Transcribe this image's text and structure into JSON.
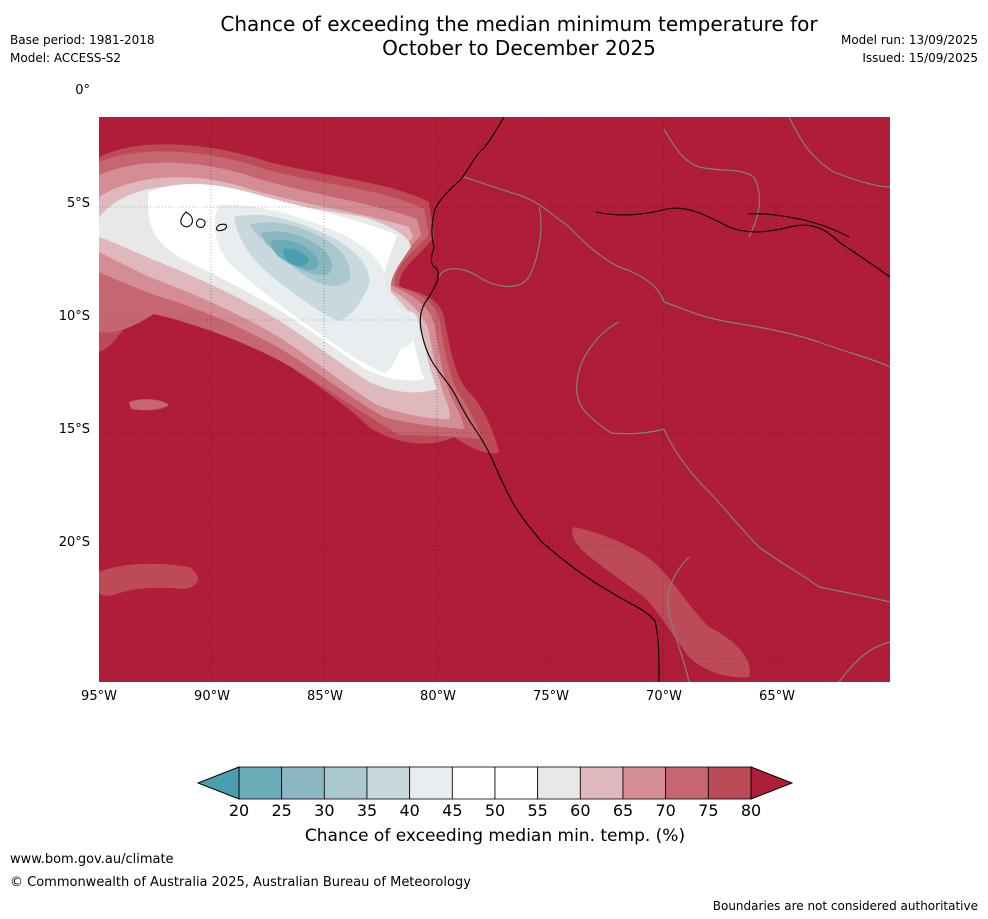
{
  "header": {
    "base_period": "Base period: 1981-2018",
    "model": "Model: ACCESS-S2",
    "model_run": "Model run: 13/09/2025",
    "issued": "Issued: 15/09/2025",
    "title_line1": "Chance of exceeding the median minimum temperature for",
    "title_line2": "October to December 2025"
  },
  "map": {
    "lat_labels": [
      "0°",
      "5°S",
      "10°S",
      "15°S",
      "20°S"
    ],
    "lon_labels": [
      "95°W",
      "90°W",
      "85°W",
      "80°W",
      "75°W",
      "70°W",
      "65°W"
    ],
    "background_color": "#b01d38",
    "coastline_color": "#000000",
    "border_color": "#808080"
  },
  "colorbar": {
    "ticks": [
      "20",
      "25",
      "30",
      "35",
      "40",
      "45",
      "50",
      "55",
      "60",
      "65",
      "70",
      "75",
      "80"
    ],
    "colors": [
      "#6aadb9",
      "#8ab7c2",
      "#a9c7ce",
      "#c8d8dd",
      "#e8edef",
      "#ffffff",
      "#ffffff",
      "#e8e8e8",
      "#dfb8bd",
      "#d48d95",
      "#c56670",
      "#bd4a57"
    ],
    "under_color": "#4a9fae",
    "over_color": "#b01d38",
    "label": "Chance of exceeding median min. temp. (%)"
  },
  "footer": {
    "url": "www.bom.gov.au/climate",
    "copyright": "© Commonwealth of Australia 2025, Australian Bureau of Meteorology",
    "note": "Boundaries are not considered authoritative"
  }
}
